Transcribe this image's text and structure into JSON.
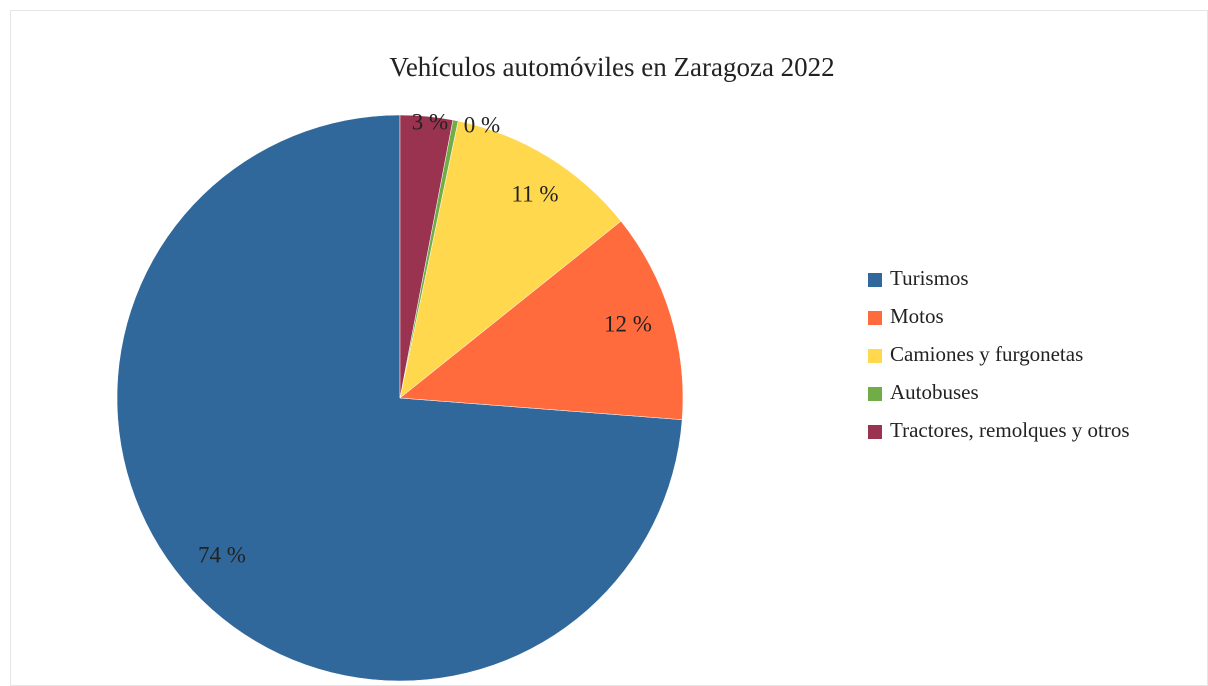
{
  "chart_data": {
    "type": "pie",
    "title": "Vehículos automóviles en Zaragoza 2022",
    "categories": [
      "Turismos",
      "Motos",
      "Camiones y furgonetas",
      "Autobuses",
      "Tractores, remolques y otros"
    ],
    "values": [
      74,
      12,
      11,
      0.3,
      3
    ],
    "value_labels": [
      "74 %",
      "12 %",
      "11 %",
      "0 %",
      "3 %"
    ],
    "colors": [
      "#31689b",
      "#ff6b3d",
      "#ffd84d",
      "#70ad47",
      "#993350"
    ],
    "legend": "right"
  }
}
